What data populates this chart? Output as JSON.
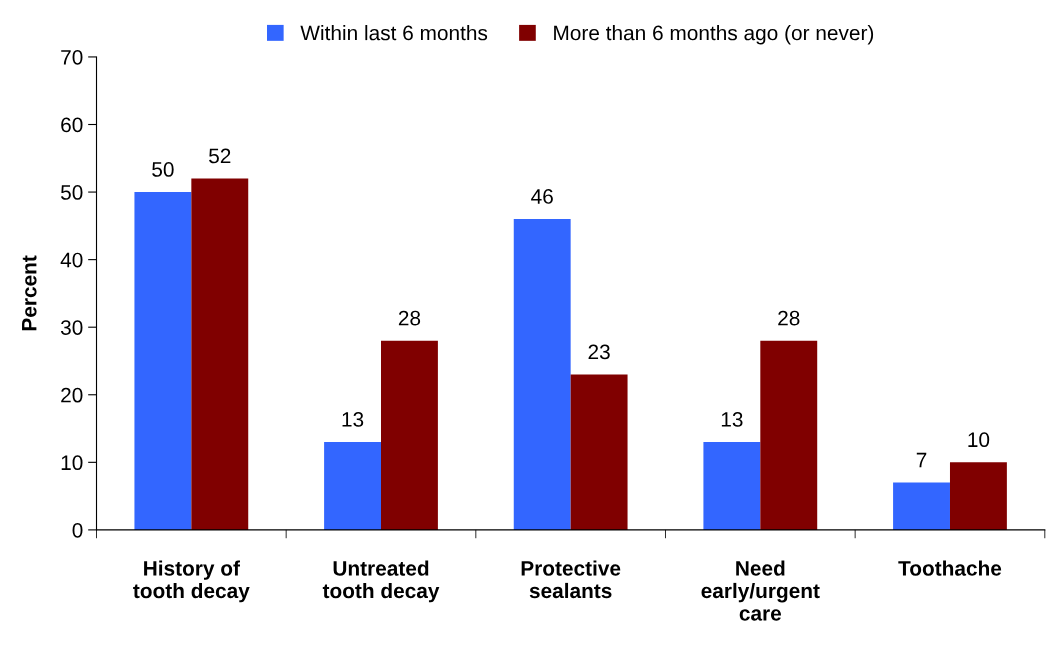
{
  "chart_data": {
    "type": "bar",
    "ylabel": "Percent",
    "categories": [
      "History of\ntooth decay",
      "Untreated\ntooth decay",
      "Protective\nsealants",
      "Need\nearly/urgent\ncare",
      "Toothache"
    ],
    "series": [
      {
        "name": "Within last 6 months",
        "color": "#3366ff",
        "values": [
          50,
          13,
          46,
          13,
          7
        ]
      },
      {
        "name": "More than 6 months ago (or never)",
        "color": "#800000",
        "values": [
          52,
          28,
          23,
          28,
          10
        ]
      }
    ],
    "ylim": [
      0,
      70
    ],
    "yticks": [
      0,
      10,
      20,
      30,
      40,
      50,
      60,
      70
    ],
    "data_labels": true,
    "legend": "top",
    "grid": false
  }
}
